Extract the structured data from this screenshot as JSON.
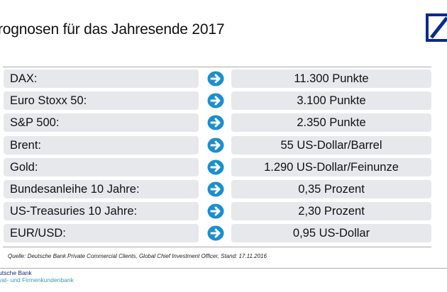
{
  "title": "rognosen für das Jahresende 2017",
  "rows": [
    {
      "label": "DAX:",
      "value": "11.300 Punkte"
    },
    {
      "label": "Euro Stoxx 50:",
      "value": "3.100 Punkte"
    },
    {
      "label": "S&P 500:",
      "value": "2.350 Punkte"
    },
    {
      "label": "Brent:",
      "value": "55 US-Dollar/Barrel"
    },
    {
      "label": "Gold:",
      "value": "1.290 US-Dollar/Feinunze"
    },
    {
      "label": "Bundesanleihe 10 Jahre:",
      "value": "0,35 Prozent"
    },
    {
      "label": "US-Treasuries 10 Jahre:",
      "value": "2,30 Prozent"
    },
    {
      "label": "EUR/USD:",
      "value": "0,95 US-Dollar"
    }
  ],
  "source": "Quelle: Deutsche Bank Private Commercial Clients, Global Chief Investment Officer, Stand: 17.11.2016",
  "footer": {
    "line1": "utsche Bank",
    "line2": "vat- und Firmenkundenbank"
  },
  "colors": {
    "arrow": "#1a8fcf",
    "logo": "#0a2a8c",
    "box": "#e6e8ec"
  },
  "icons": {
    "row_icon": "arrow-right-circle-icon",
    "logo": "deutsche-bank-logo"
  }
}
